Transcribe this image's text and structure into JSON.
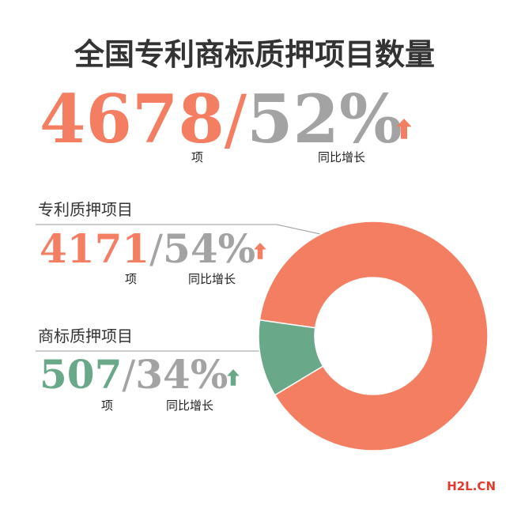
{
  "chart_data": {
    "type": "donut",
    "title": "全国专利商标质押项目数量",
    "total": 4678,
    "total_growth": 52,
    "total_growth_label": "52%",
    "separator": "/",
    "unit": "项",
    "growth_caption": "同比增长",
    "categories": [
      "专利质押项目",
      "商标质押项目"
    ],
    "values": [
      4171,
      507
    ],
    "colors": [
      "#f47e62",
      "#6aa88a"
    ],
    "growth": [
      54,
      34
    ],
    "growth_labels": [
      "54%",
      "34%"
    ],
    "growth_color": "#a3a3a3",
    "watermark": "H2L.CN"
  }
}
